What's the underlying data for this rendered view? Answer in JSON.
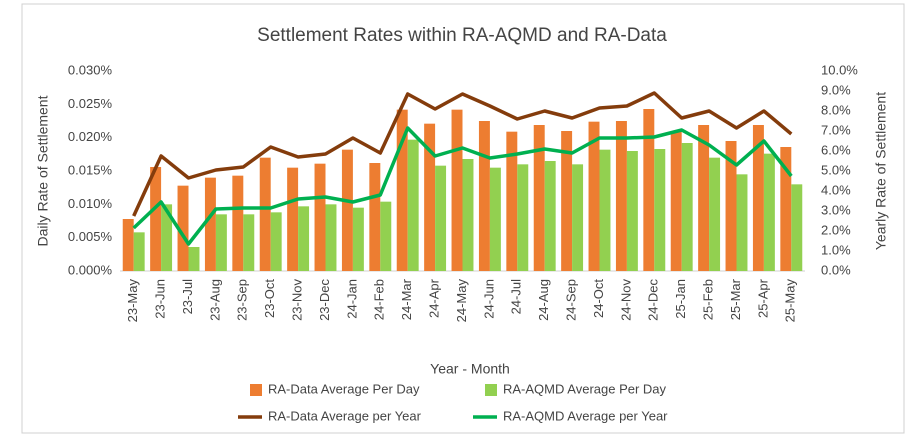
{
  "chart_data": {
    "type": "combo",
    "title": "Settlement Rates within RA-AQMD and RA-Data",
    "x_label": "Year - Month",
    "y_label": "Daily Rate of Settlement",
    "y2_label": "Yearly Rate of Settlement",
    "categories": [
      "23-May",
      "23-Jun",
      "23-Jul",
      "23-Aug",
      "23-Sep",
      "23-Oct",
      "23-Nov",
      "23-Dec",
      "24-Jan",
      "24-Feb",
      "24-Mar",
      "24-Apr",
      "24-May",
      "24-Jun",
      "24-Jul",
      "24-Aug",
      "24-Sep",
      "24-Oct",
      "24-Nov",
      "24-Dec",
      "25-Jan",
      "25-Feb",
      "25-Mar",
      "25-Apr",
      "25-May"
    ],
    "series": [
      {
        "name": "RA-Data Average Per Day",
        "type": "bar",
        "color": "#ed7d31",
        "values": [
          0.0078,
          0.0156,
          0.0128,
          0.014,
          0.0143,
          0.017,
          0.0155,
          0.0161,
          0.0182,
          0.0162,
          0.0242,
          0.0221,
          0.0242,
          0.0225,
          0.0209,
          0.0219,
          0.021,
          0.0224,
          0.0225,
          0.0243,
          0.0209,
          0.0219,
          0.0195,
          0.0219,
          0.0186
        ]
      },
      {
        "name": "RA-AQMD Average Per Day",
        "type": "bar",
        "color": "#92d050",
        "values": [
          0.0058,
          0.01,
          0.0036,
          0.0085,
          0.0085,
          0.0088,
          0.0097,
          0.01,
          0.0095,
          0.0104,
          0.0197,
          0.0158,
          0.0168,
          0.0155,
          0.016,
          0.0165,
          0.016,
          0.0182,
          0.018,
          0.0183,
          0.0192,
          0.017,
          0.0145,
          0.0176,
          0.013
        ]
      },
      {
        "name": "RA-Data Average per Year",
        "type": "line",
        "axis": "y2",
        "color": "#843c0c",
        "values": [
          2.75,
          5.75,
          4.65,
          5.05,
          5.2,
          6.2,
          5.7,
          5.85,
          6.65,
          5.9,
          8.85,
          8.1,
          8.85,
          8.25,
          7.6,
          8.0,
          7.65,
          8.15,
          8.25,
          8.9,
          7.65,
          8.0,
          7.15,
          8.0,
          6.85
        ]
      },
      {
        "name": "RA-AQMD Average per Year",
        "type": "line",
        "axis": "y2",
        "color": "#00b050",
        "values": [
          2.15,
          3.45,
          1.35,
          3.1,
          3.15,
          3.15,
          3.6,
          3.7,
          3.45,
          3.8,
          7.15,
          5.75,
          6.15,
          5.65,
          5.85,
          6.1,
          5.9,
          6.65,
          6.65,
          6.7,
          7.05,
          6.3,
          5.3,
          6.5,
          4.75
        ]
      }
    ],
    "ylim": [
      0,
      0.03
    ],
    "yticks": [
      {
        "value": 0,
        "label": "0.000%"
      },
      {
        "value": 0.005,
        "label": "0.005%"
      },
      {
        "value": 0.01,
        "label": "0.010%"
      },
      {
        "value": 0.015,
        "label": "0.015%"
      },
      {
        "value": 0.02,
        "label": "0.020%"
      },
      {
        "value": 0.025,
        "label": "0.025%"
      },
      {
        "value": 0.03,
        "label": "0.030%"
      }
    ],
    "y2lim": [
      0,
      10
    ],
    "y2ticks": [
      {
        "value": 0,
        "label": "0.0%"
      },
      {
        "value": 1,
        "label": "1.0%"
      },
      {
        "value": 2,
        "label": "2.0%"
      },
      {
        "value": 3,
        "label": "3.0%"
      },
      {
        "value": 4,
        "label": "4.0%"
      },
      {
        "value": 5,
        "label": "5.0%"
      },
      {
        "value": 6,
        "label": "6.0%"
      },
      {
        "value": 7,
        "label": "7.0%"
      },
      {
        "value": 8,
        "label": "8.0%"
      },
      {
        "value": 9,
        "label": "9.0%"
      },
      {
        "value": 10,
        "label": "10.0%"
      }
    ],
    "grid": false,
    "legend": "bottom"
  }
}
